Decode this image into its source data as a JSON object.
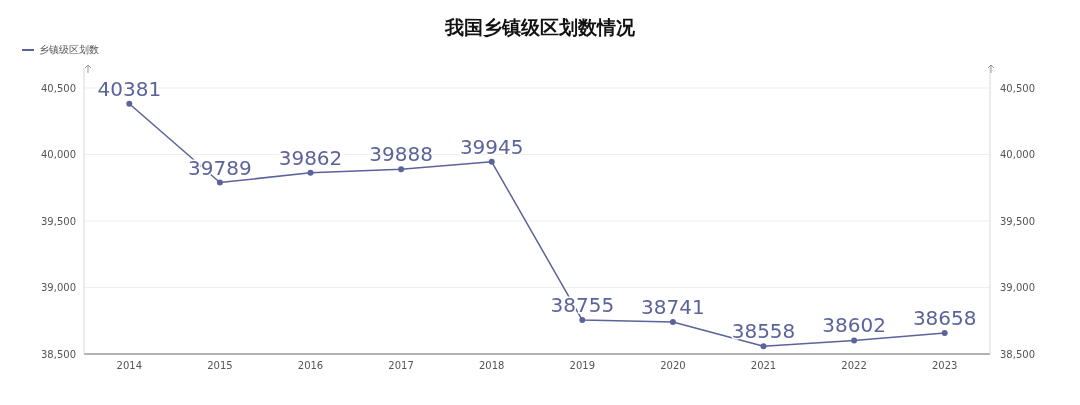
{
  "chart_data": {
    "type": "line",
    "title": "我国乡镇级区划数情况",
    "categories": [
      "2014",
      "2015",
      "2016",
      "2017",
      "2018",
      "2019",
      "2020",
      "2021",
      "2022",
      "2023"
    ],
    "series": [
      {
        "name": "乡镇级区划数",
        "color": "#5b639b",
        "values": [
          40381,
          39789,
          39862,
          39888,
          39945,
          38755,
          38741,
          38558,
          38602,
          38658
        ]
      }
    ],
    "ylim": [
      38500,
      40650
    ],
    "yticks": [
      {
        "value": 38500,
        "label": "38,500"
      },
      {
        "value": 39000,
        "label": "39,000"
      },
      {
        "value": 39500,
        "label": "39,500"
      },
      {
        "value": 40000,
        "label": "40,000"
      },
      {
        "value": 40500,
        "label": "40,500"
      }
    ],
    "y2lim": [
      38500,
      40650
    ],
    "y2ticks": [
      {
        "value": 38500,
        "label": "38,500"
      },
      {
        "value": 39000,
        "label": "39,000"
      },
      {
        "value": 39500,
        "label": "39,500"
      },
      {
        "value": 40000,
        "label": "40,000"
      },
      {
        "value": 40500,
        "label": "40,500"
      }
    ],
    "grid": "y",
    "legend": "top left",
    "marker": "circle",
    "line_style": "solid",
    "data_labels": true
  }
}
